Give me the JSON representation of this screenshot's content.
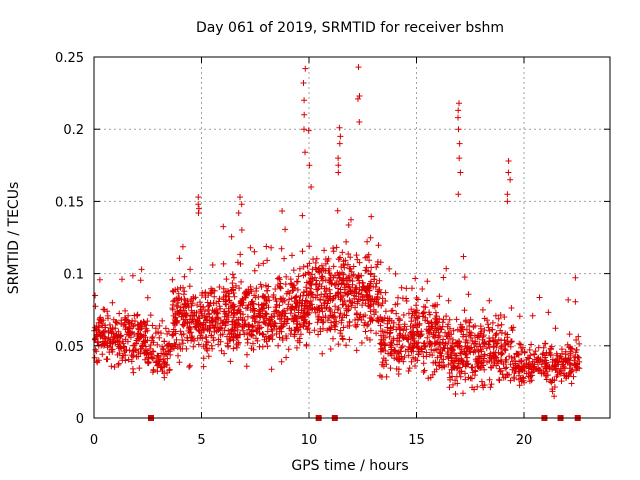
{
  "chart_data": {
    "type": "scatter",
    "title": "Day 061 of 2019, SRMTID for receiver bshm",
    "xlabel": "GPS time / hours",
    "ylabel": "SRMTID / TECUs",
    "xlim": [
      0,
      24
    ],
    "ylim": [
      0,
      0.25
    ],
    "x_ticks": [
      0,
      5,
      10,
      15,
      20
    ],
    "x_tick_labels": [
      "0",
      "5",
      "10",
      "15",
      "20"
    ],
    "y_ticks": [
      0,
      0.05,
      0.1,
      0.15,
      0.2,
      0.25
    ],
    "y_tick_labels": [
      "0",
      "0.05",
      "0.1",
      "0.15",
      "0.2",
      "0.25"
    ],
    "grid": true,
    "marker": "+",
    "color": "#dd0000",
    "series": [
      {
        "name": "SRMTID",
        "description": "dense scatter of approximately 2500 points between 0 and 22.6 hours",
        "density_profile": [
          {
            "x_range": [
              0.0,
              2.5
            ],
            "center": 0.055,
            "spread": 0.02,
            "count": 260
          },
          {
            "x_range": [
              2.5,
              3.6
            ],
            "center": 0.045,
            "spread": 0.015,
            "count": 90
          },
          {
            "x_range": [
              3.6,
              5.5
            ],
            "center": 0.068,
            "spread": 0.025,
            "count": 230
          },
          {
            "x_range": [
              5.5,
              10.0
            ],
            "center": 0.072,
            "spread": 0.025,
            "count": 560
          },
          {
            "x_range": [
              10.0,
              13.3
            ],
            "center": 0.085,
            "spread": 0.03,
            "count": 420
          },
          {
            "x_range": [
              13.3,
              16.5
            ],
            "center": 0.055,
            "spread": 0.025,
            "count": 360
          },
          {
            "x_range": [
              16.5,
              19.5
            ],
            "center": 0.045,
            "spread": 0.022,
            "count": 320
          },
          {
            "x_range": [
              19.5,
              22.6
            ],
            "center": 0.038,
            "spread": 0.015,
            "count": 260
          }
        ],
        "spikes": [
          {
            "x": 4.9,
            "y_values": [
              0.153,
              0.148,
              0.145,
              0.142
            ]
          },
          {
            "x": 6.8,
            "y_values": [
              0.153,
              0.148,
              0.142
            ]
          },
          {
            "x": 9.8,
            "y_values": [
              0.242,
              0.232,
              0.22,
              0.21,
              0.2,
              0.184
            ]
          },
          {
            "x": 10.05,
            "y_values": [
              0.199,
              0.175,
              0.16
            ]
          },
          {
            "x": 11.4,
            "y_values": [
              0.201,
              0.195,
              0.19,
              0.18,
              0.175,
              0.17
            ]
          },
          {
            "x": 12.3,
            "y_values": [
              0.243,
              0.223,
              0.221,
              0.205
            ]
          },
          {
            "x": 17.0,
            "y_values": [
              0.218,
              0.213,
              0.208,
              0.2,
              0.19,
              0.18,
              0.17,
              0.155
            ]
          },
          {
            "x": 19.3,
            "y_values": [
              0.178,
              0.17,
              0.165,
              0.155,
              0.15
            ]
          }
        ],
        "zero_points_x": [
          2.65,
          10.45,
          11.2,
          20.95,
          21.7,
          22.5
        ]
      }
    ]
  }
}
